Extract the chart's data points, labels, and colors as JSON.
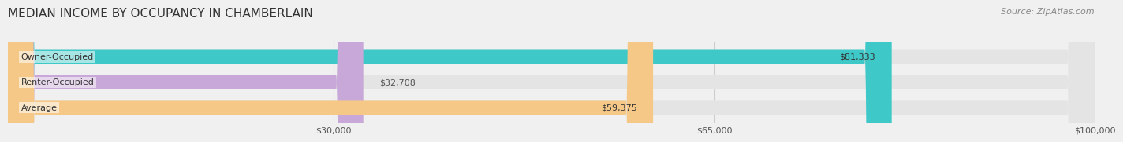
{
  "title": "MEDIAN INCOME BY OCCUPANCY IN CHAMBERLAIN",
  "source": "Source: ZipAtlas.com",
  "categories": [
    "Owner-Occupied",
    "Renter-Occupied",
    "Average"
  ],
  "values": [
    81333,
    32708,
    59375
  ],
  "bar_colors": [
    "#3fc8c8",
    "#c8a8d8",
    "#f5c888"
  ],
  "label_colors": [
    "#ffffff",
    "#555555",
    "#555555"
  ],
  "value_labels": [
    "$81,333",
    "$32,708",
    "$59,375"
  ],
  "xlim": [
    0,
    100000
  ],
  "xticks": [
    30000,
    65000,
    100000
  ],
  "xtick_labels": [
    "$30,000",
    "$65,000",
    "$100,000"
  ],
  "bar_height": 0.55,
  "background_color": "#f0f0f0",
  "bar_bg_color": "#e4e4e4",
  "title_fontsize": 11,
  "label_fontsize": 8,
  "value_fontsize": 8,
  "source_fontsize": 8
}
